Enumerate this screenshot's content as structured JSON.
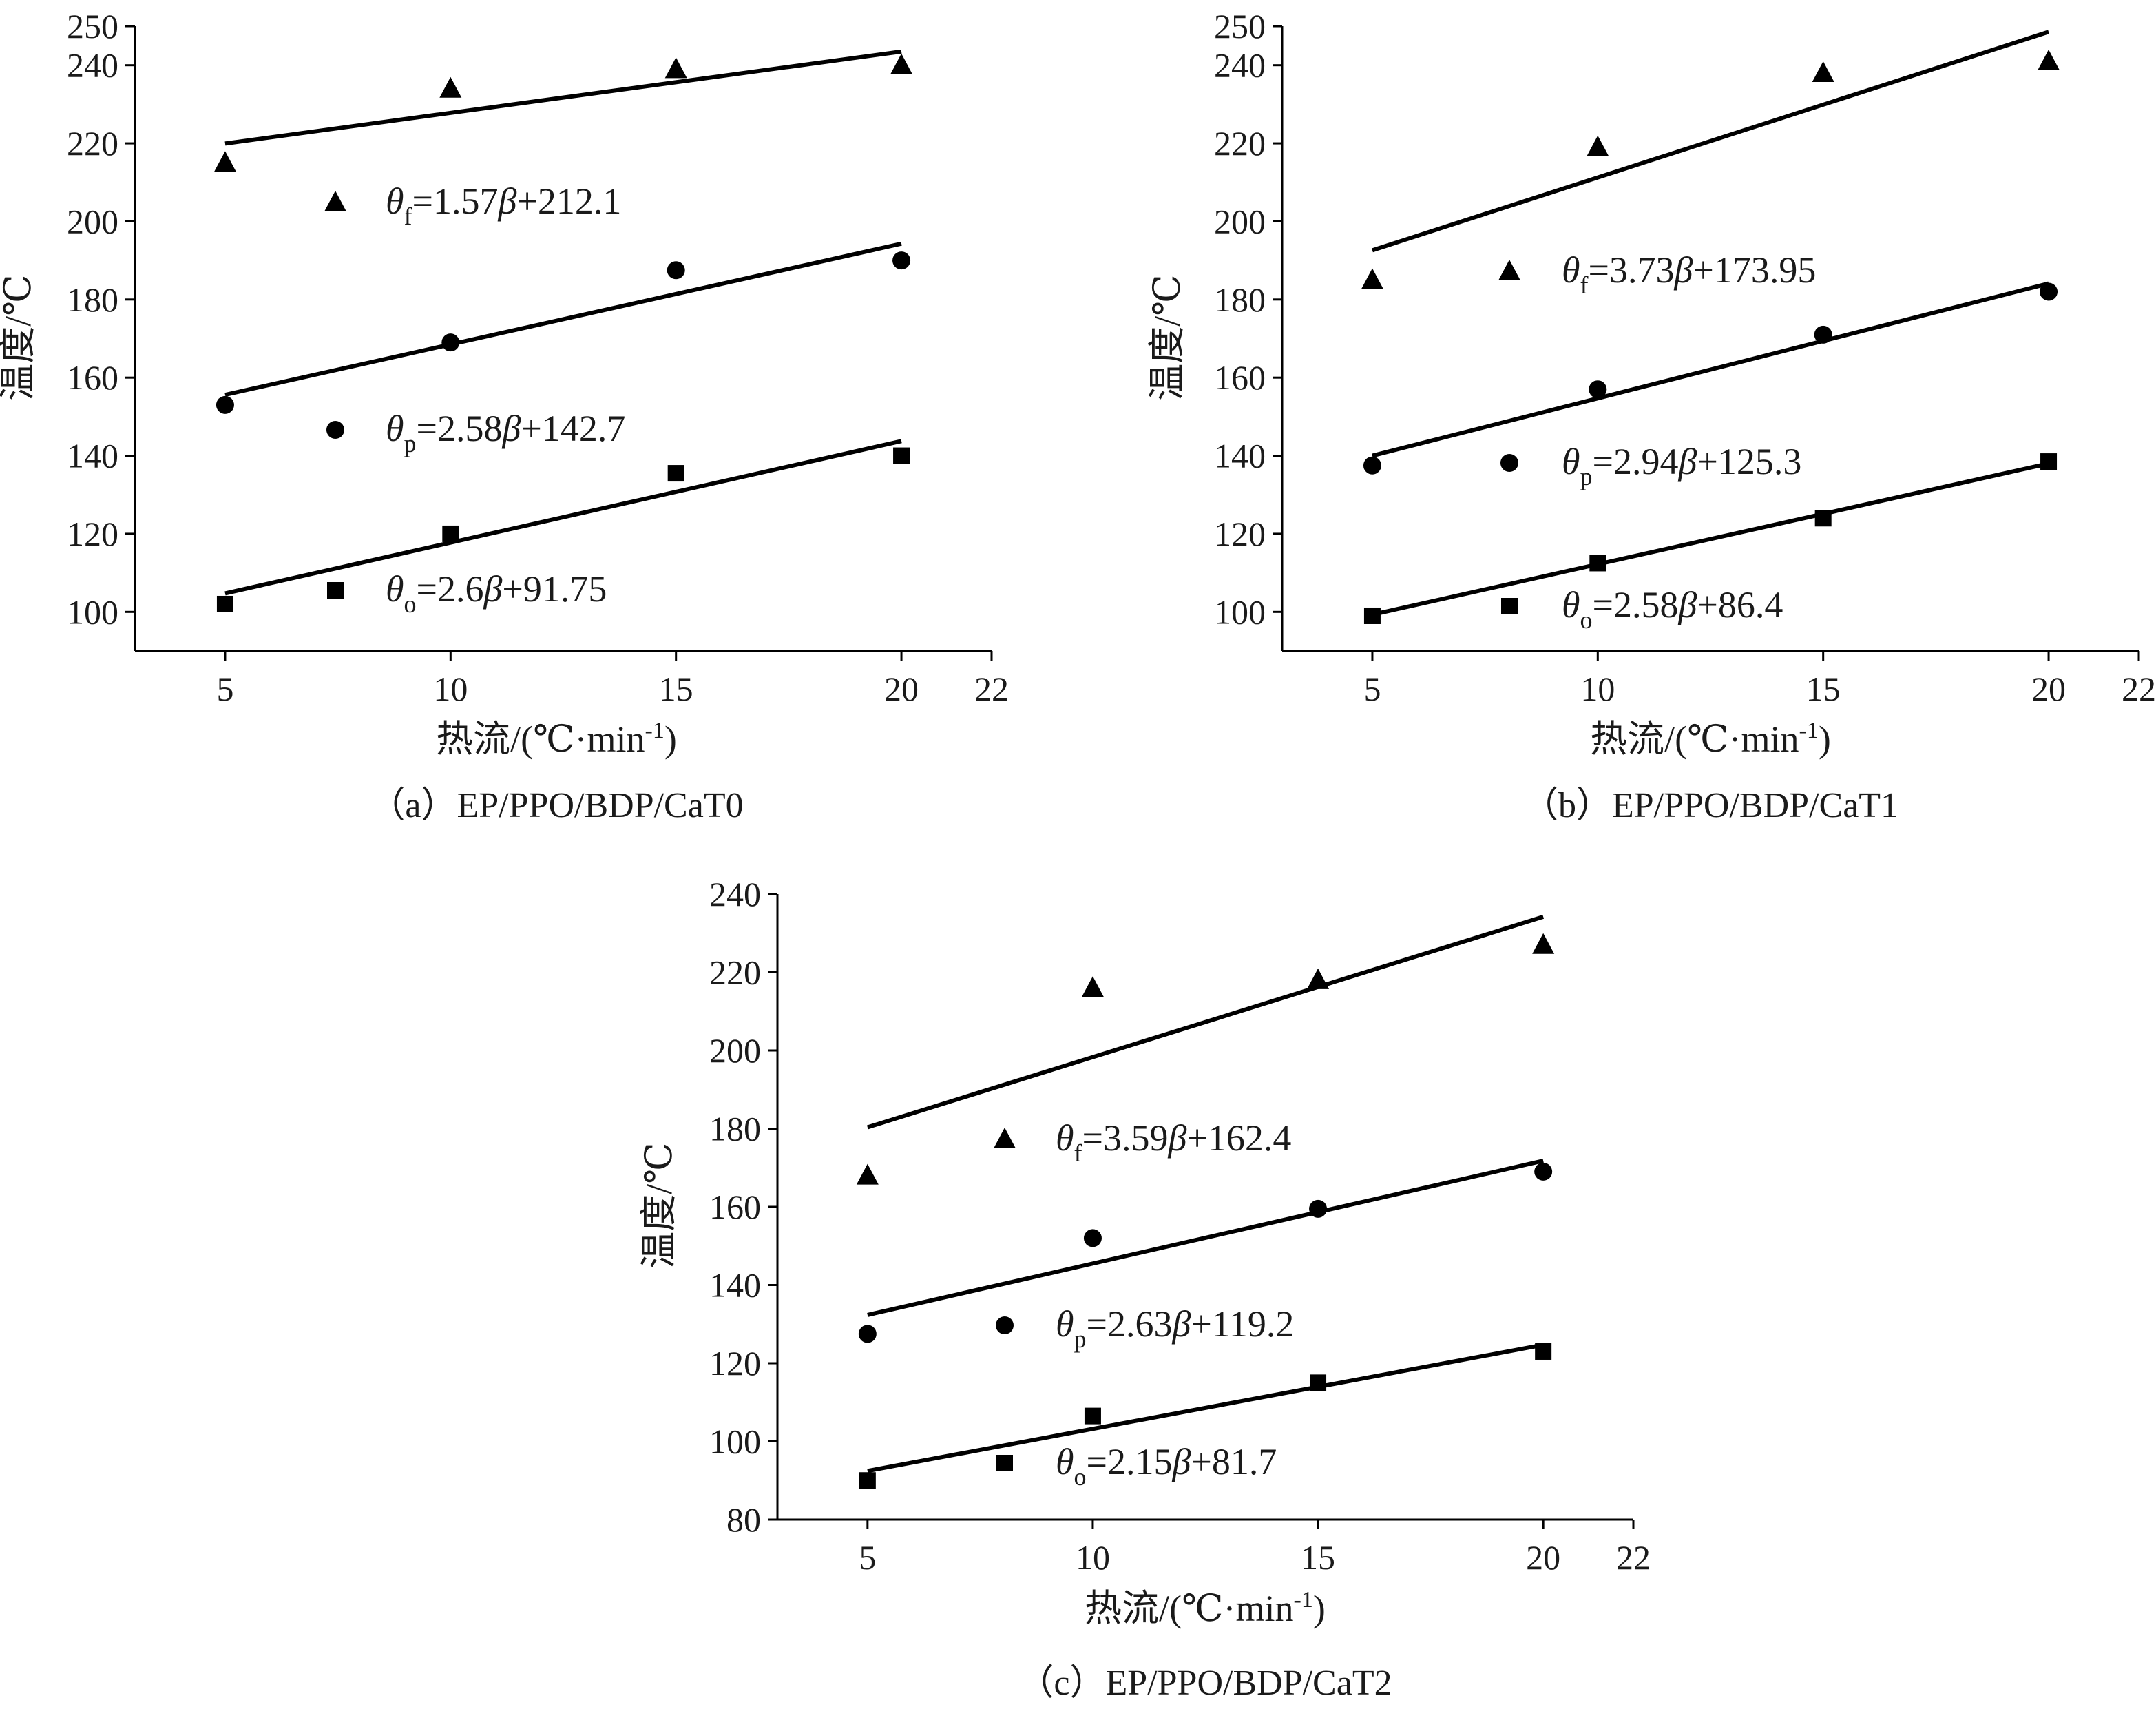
{
  "chart_data": [
    {
      "type": "scatter",
      "caption": "（a）EP/PPO/BDP/CaT0",
      "xlabel": "热流/(℃·min",
      "xlabel_sup": "-1",
      "xlabel_end": ")",
      "ylabel": "温度/℃",
      "xlim": [
        3,
        22
      ],
      "ylim": [
        90,
        250
      ],
      "xticks": [
        5,
        10,
        15,
        20,
        22
      ],
      "yticks": [
        100,
        120,
        140,
        160,
        180,
        200,
        220,
        240,
        250
      ],
      "series": [
        {
          "marker": "triangle",
          "x": [
            5,
            10,
            15,
            20
          ],
          "y": [
            215,
            234,
            239,
            240
          ],
          "fit": {
            "slope": 1.57,
            "intercept": 212.1
          },
          "equation": {
            "symbol": "θ",
            "sub": "f",
            "text": "=1.57",
            "beta": "β",
            "tail": "+212.1"
          }
        },
        {
          "marker": "circle",
          "x": [
            5,
            10,
            15,
            20
          ],
          "y": [
            153,
            169,
            187.5,
            190
          ],
          "fit": {
            "slope": 2.58,
            "intercept": 142.7
          },
          "equation": {
            "symbol": "θ",
            "sub": "p",
            "text": "=2.58",
            "beta": "β",
            "tail": "+142.7"
          }
        },
        {
          "marker": "square",
          "x": [
            5,
            10,
            15,
            20
          ],
          "y": [
            102,
            120,
            135.5,
            140
          ],
          "fit": {
            "slope": 2.6,
            "intercept": 91.75
          },
          "equation": {
            "symbol": "θ",
            "sub": "o",
            "text": "=2.6",
            "beta": "β",
            "tail": "+91.75"
          }
        }
      ]
    },
    {
      "type": "scatter",
      "caption": "（b）EP/PPO/BDP/CaT1",
      "xlabel": "热流/(℃·min",
      "xlabel_sup": "-1",
      "xlabel_end": ")",
      "ylabel": "温度/℃",
      "xlim": [
        3,
        22
      ],
      "ylim": [
        90,
        250
      ],
      "xticks": [
        5,
        10,
        15,
        20,
        22
      ],
      "yticks": [
        100,
        120,
        140,
        160,
        180,
        200,
        220,
        240,
        250
      ],
      "series": [
        {
          "marker": "triangle",
          "x": [
            5,
            10,
            15,
            20
          ],
          "y": [
            185,
            219,
            238,
            241
          ],
          "fit": {
            "slope": 3.73,
            "intercept": 173.95
          },
          "equation": {
            "symbol": "θ",
            "sub": "f",
            "text": "=3.73",
            "beta": "β",
            "tail": "+173.95"
          }
        },
        {
          "marker": "circle",
          "x": [
            5,
            10,
            15,
            20
          ],
          "y": [
            137.5,
            157,
            171,
            182
          ],
          "fit": {
            "slope": 2.94,
            "intercept": 125.3
          },
          "equation": {
            "symbol": "θ",
            "sub": "p",
            "text": "=2.94",
            "beta": "β",
            "tail": "+125.3"
          }
        },
        {
          "marker": "square",
          "x": [
            5,
            10,
            15,
            20
          ],
          "y": [
            99,
            112.5,
            124,
            138.5
          ],
          "fit": {
            "slope": 2.58,
            "intercept": 86.4
          },
          "equation": {
            "symbol": "θ",
            "sub": "o",
            "text": "=2.58",
            "beta": "β",
            "tail": "+86.4"
          }
        }
      ]
    },
    {
      "type": "scatter",
      "caption": "（c）EP/PPO/BDP/CaT2",
      "xlabel": "热流/(℃·min",
      "xlabel_sup": "-1",
      "xlabel_end": ")",
      "ylabel": "温度/℃",
      "xlim": [
        3,
        22
      ],
      "ylim": [
        80,
        240
      ],
      "xticks": [
        5,
        10,
        15,
        20,
        22
      ],
      "yticks": [
        80,
        100,
        120,
        140,
        160,
        180,
        200,
        220,
        240
      ],
      "series": [
        {
          "marker": "triangle",
          "x": [
            5,
            10,
            15,
            20
          ],
          "y": [
            168,
            216,
            218,
            227
          ],
          "fit": {
            "slope": 3.59,
            "intercept": 162.4
          },
          "equation": {
            "symbol": "θ",
            "sub": "f",
            "text": "=3.59",
            "beta": "β",
            "tail": "+162.4"
          }
        },
        {
          "marker": "circle",
          "x": [
            5,
            10,
            15,
            20
          ],
          "y": [
            127.5,
            152,
            159.5,
            169
          ],
          "fit": {
            "slope": 2.63,
            "intercept": 119.2
          },
          "equation": {
            "symbol": "θ",
            "sub": "p",
            "text": "=2.63",
            "beta": "β",
            "tail": "+119.2"
          }
        },
        {
          "marker": "square",
          "x": [
            5,
            10,
            15,
            20
          ],
          "y": [
            90,
            106.5,
            115,
            123
          ],
          "fit": {
            "slope": 2.15,
            "intercept": 81.7
          },
          "equation": {
            "symbol": "θ",
            "sub": "o",
            "text": "=2.15",
            "beta": "β",
            "tail": "+81.7"
          }
        }
      ]
    }
  ]
}
